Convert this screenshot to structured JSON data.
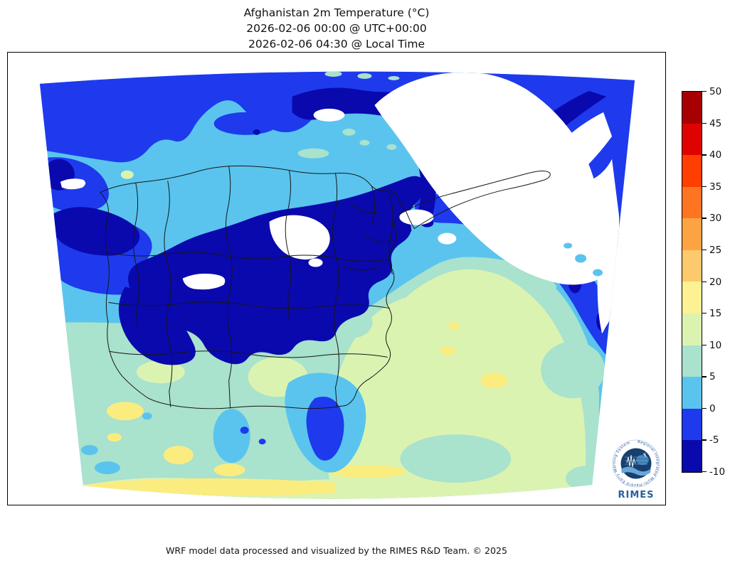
{
  "figure": {
    "title_line1": "Afghanistan 2m Temperature (°C)",
    "title_line2": "2026-02-06 00:00 @ UTC+00:00",
    "title_line3": "2026-02-06 04:30 @ Local Time",
    "footer": "WRF model data processed and visualized by the RIMES R&D Team. © 2025"
  },
  "colorbar": {
    "orientation": "vertical",
    "position": "right",
    "tick_labels": [
      "50",
      "45",
      "40",
      "35",
      "30",
      "25",
      "20",
      "15",
      "10",
      "5",
      "0",
      "-5",
      "-10"
    ],
    "value_range": [
      -10,
      50
    ],
    "cells_top_to_bottom": [
      {
        "range": "45 to 50",
        "color": "#a80000"
      },
      {
        "range": "40 to 45",
        "color": "#df0300"
      },
      {
        "range": "35 to 40",
        "color": "#fe3f00"
      },
      {
        "range": "30 to 35",
        "color": "#fd7521"
      },
      {
        "range": "25 to 30",
        "color": "#fca444"
      },
      {
        "range": "20 to 25",
        "color": "#fdc96d"
      },
      {
        "range": "15 to 20",
        "color": "#fcf193"
      },
      {
        "range": "10 to 15",
        "color": "#dbf3b1"
      },
      {
        "range": "5 to 10",
        "color": "#a9e2cd"
      },
      {
        "range": "0 to 5",
        "color": "#5ac4ee"
      },
      {
        "range": "-5 to 0",
        "color": "#1e3aec"
      },
      {
        "range": "-10 to -5",
        "color": "#0a09ae"
      }
    ]
  },
  "map": {
    "type": "filled-contour 2m temperature field over Afghanistan with province boundaries",
    "units": "°C",
    "below_range_color": "#ffffff",
    "boundary_line_color": "#161616",
    "band_colors": {
      "band_n10": "#0a09ae",
      "band_n5": "#1e3aec",
      "band_p0": "#5ac4ee",
      "band_p5": "#a9e2cd",
      "band_p10": "#dbf3b1",
      "band_p15": "#fbec80",
      "band_white": "#ffffff"
    }
  },
  "logo": {
    "brand": "RIMES",
    "ring_text": "Regional Integrated Multi-Hazard Early Warning System",
    "brand_color": "#2a5f9e"
  },
  "chart_data": {
    "type": "heatmap",
    "title": "Afghanistan 2m Temperature (°C)",
    "subtitle_utc": "2026-02-06 00:00 @ UTC+00:00",
    "subtitle_local": "2026-02-06 04:30 @ Local Time",
    "legend_position": "right",
    "colorbar_ticks": [
      50,
      45,
      40,
      35,
      30,
      25,
      20,
      15,
      10,
      5,
      0,
      -5,
      -10
    ],
    "colorbar_range": [
      -10,
      50
    ]
  }
}
